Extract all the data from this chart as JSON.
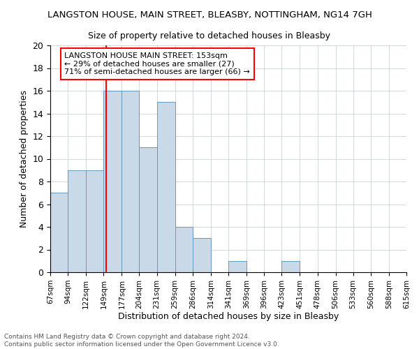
{
  "title": "LANGSTON HOUSE, MAIN STREET, BLEASBY, NOTTINGHAM, NG14 7GH",
  "subtitle": "Size of property relative to detached houses in Bleasby",
  "xlabel": "Distribution of detached houses by size in Bleasby",
  "ylabel": "Number of detached properties",
  "footer_line1": "Contains HM Land Registry data © Crown copyright and database right 2024.",
  "footer_line2": "Contains public sector information licensed under the Open Government Licence v3.0.",
  "bin_labels": [
    "67sqm",
    "94sqm",
    "122sqm",
    "149sqm",
    "177sqm",
    "204sqm",
    "231sqm",
    "259sqm",
    "286sqm",
    "314sqm",
    "341sqm",
    "369sqm",
    "396sqm",
    "423sqm",
    "451sqm",
    "478sqm",
    "506sqm",
    "533sqm",
    "560sqm",
    "588sqm",
    "615sqm"
  ],
  "bar_values": [
    7,
    9,
    9,
    16,
    16,
    11,
    15,
    4,
    3,
    0,
    1,
    0,
    0,
    1,
    0,
    0,
    0,
    0,
    0,
    0
  ],
  "bar_color": "#c9d9e8",
  "bar_edge_color": "#6699bb",
  "vline_x": 153,
  "vline_color": "red",
  "ylim": [
    0,
    20
  ],
  "yticks": [
    0,
    2,
    4,
    6,
    8,
    10,
    12,
    14,
    16,
    18,
    20
  ],
  "annotation_title": "LANGSTON HOUSE MAIN STREET: 153sqm",
  "annotation_line2": "← 29% of detached houses are smaller (27)",
  "annotation_line3": "71% of semi-detached houses are larger (66) →",
  "annotation_box_color": "white",
  "annotation_box_edge": "red",
  "bin_edges": [
    67,
    94,
    122,
    149,
    177,
    204,
    231,
    259,
    286,
    314,
    341,
    369,
    396,
    423,
    451,
    478,
    506,
    533,
    560,
    588,
    615
  ]
}
